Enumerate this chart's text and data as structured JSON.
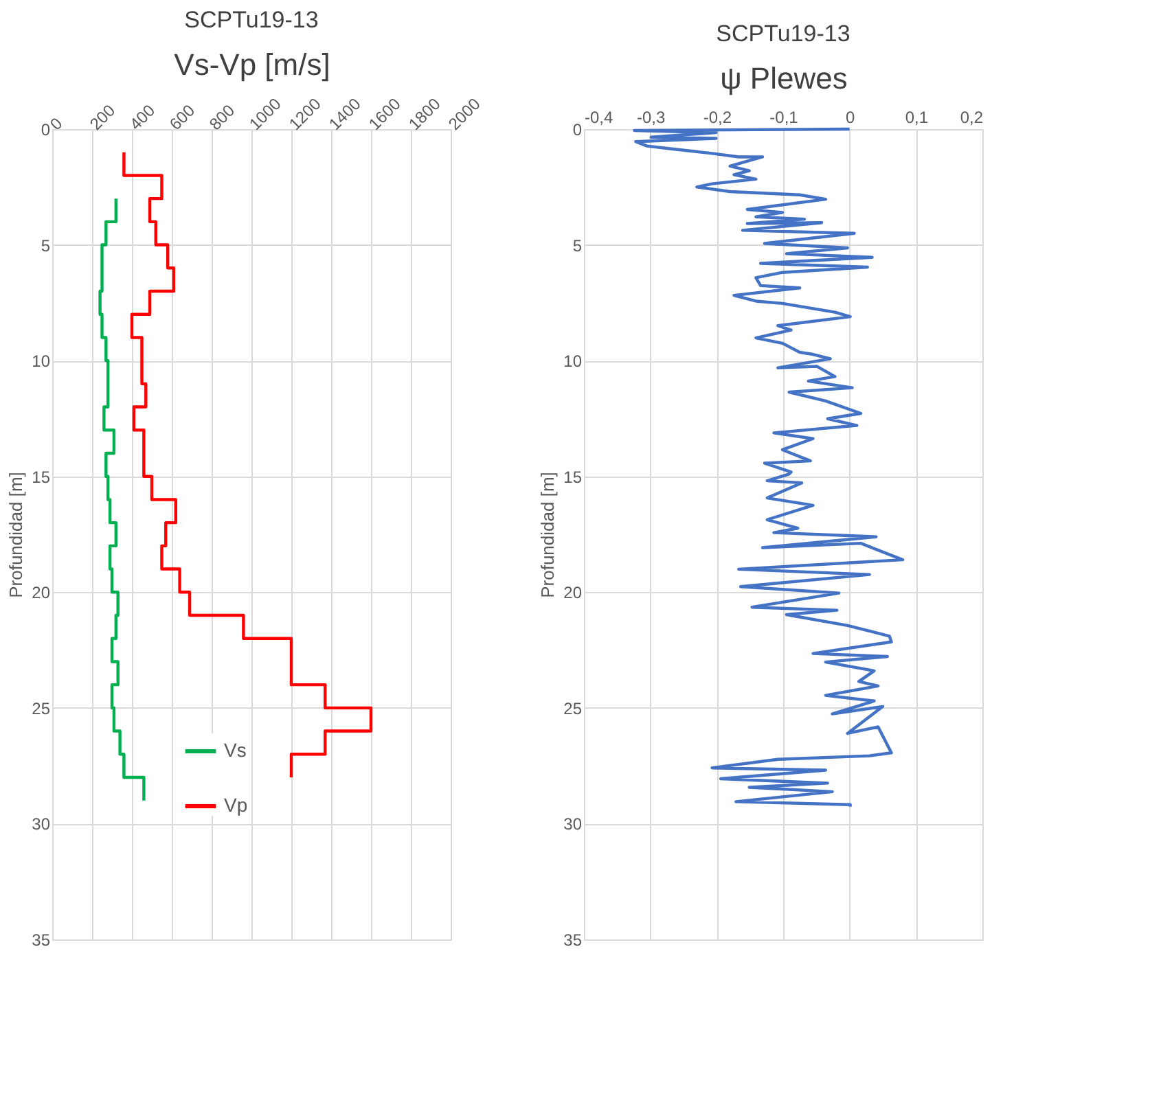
{
  "chart_data": [
    {
      "type": "line",
      "title": "SCPTu19-13",
      "xlabel": "Vs-Vp [m/s]",
      "ylabel": "Profundidad [m]",
      "xlim": [
        0,
        2000
      ],
      "xticks": [
        0,
        200,
        400,
        600,
        800,
        1000,
        1200,
        1400,
        1600,
        1800,
        2000
      ],
      "ylim": [
        35,
        0
      ],
      "yticks": [
        0,
        5,
        10,
        15,
        20,
        25,
        30,
        35
      ],
      "grid": true,
      "legend": "bottom left",
      "series": [
        {
          "name": "Vs",
          "color": "#00b050",
          "x": [
            320,
            320,
            270,
            270,
            250,
            250,
            250,
            250,
            240,
            240,
            250,
            250,
            270,
            270,
            280,
            280,
            260,
            260,
            310,
            310,
            270,
            270,
            280,
            280,
            290,
            290,
            320,
            320,
            290,
            290,
            300,
            300,
            330,
            330,
            320,
            320,
            300,
            300,
            330,
            330,
            300,
            300,
            310,
            310,
            340,
            340,
            360,
            360,
            460,
            460
          ],
          "values": [
            3,
            4,
            4,
            5,
            5,
            6,
            6,
            7,
            7,
            8,
            8,
            9,
            9,
            10,
            10,
            12,
            12,
            13,
            13,
            14,
            14,
            15,
            15,
            16,
            16,
            17,
            17,
            18,
            18,
            19,
            19,
            20,
            20,
            21,
            21,
            22,
            22,
            23,
            23,
            24,
            24,
            25,
            25,
            26,
            26,
            27,
            27,
            28,
            28,
            29
          ]
        },
        {
          "name": "Vp",
          "color": "#ff0000",
          "x": [
            360,
            360,
            550,
            550,
            490,
            490,
            520,
            520,
            580,
            580,
            610,
            610,
            490,
            490,
            400,
            400,
            450,
            450,
            470,
            470,
            410,
            410,
            460,
            460,
            500,
            500,
            620,
            620,
            570,
            570,
            550,
            550,
            640,
            640,
            690,
            690,
            960,
            960,
            1200,
            1200,
            1370,
            1370,
            1600,
            1600,
            1370,
            1370,
            1200,
            1200
          ],
          "values": [
            1,
            2,
            2,
            3,
            3,
            4,
            4,
            5,
            5,
            6,
            6,
            7,
            7,
            8,
            8,
            9,
            9,
            11,
            11,
            12,
            12,
            13,
            13,
            15,
            15,
            16,
            16,
            17,
            17,
            18,
            18,
            19,
            19,
            20,
            20,
            21,
            21,
            22,
            22,
            24,
            24,
            25,
            25,
            26,
            26,
            27,
            27,
            28
          ]
        }
      ]
    },
    {
      "type": "line",
      "title": "SCPTu19-13",
      "xlabel": "ψ Plewes",
      "ylabel": "Profundidad [m]",
      "xlim": [
        -0.4,
        0.2
      ],
      "xticks": [
        {
          "value": -0.4,
          "label": "-0,4"
        },
        {
          "value": -0.3,
          "label": "-0,3"
        },
        {
          "value": -0.2,
          "label": "-0,2"
        },
        {
          "value": -0.1,
          "label": "-0,1"
        },
        0,
        {
          "value": 0.1,
          "label": "0,1"
        },
        {
          "value": 0.2,
          "label": "0,2"
        }
      ],
      "ylim": [
        35,
        0
      ],
      "yticks": [
        0,
        5,
        10,
        15,
        20,
        25,
        30,
        35
      ],
      "grid": true,
      "series": [
        {
          "color": "#4472c4",
          "x": [
            0,
            -0.324,
            -0.201,
            -0.299,
            -0.201,
            -0.322,
            -0.305,
            -0.266,
            -0.207,
            -0.167,
            -0.131,
            -0.18,
            -0.151,
            -0.174,
            -0.141,
            -0.207,
            -0.23,
            -0.18,
            -0.075,
            -0.036,
            -0.154,
            -0.101,
            -0.141,
            -0.068,
            -0.154,
            -0.042,
            -0.161,
            0.007,
            -0.128,
            -0.003,
            -0.095,
            0.034,
            -0.134,
            0.027,
            -0.101,
            -0.141,
            -0.134,
            -0.075,
            -0.174,
            -0.141,
            -0.101,
            -0.022,
            0.001,
            -0.108,
            -0.088,
            -0.141,
            -0.101,
            -0.075,
            -0.055,
            -0.029,
            -0.108,
            -0.049,
            -0.022,
            -0.062,
            0.004,
            -0.091,
            -0.036,
            0.017,
            -0.033,
            0.011,
            -0.114,
            -0.055,
            -0.101,
            -0.059,
            -0.128,
            -0.088,
            -0.091,
            -0.124,
            -0.072,
            -0.124,
            -0.055,
            -0.124,
            -0.078,
            -0.114,
            0.04,
            -0.131,
            0.017,
            0.08,
            -0.167,
            0.03,
            -0.164,
            -0.016,
            -0.147,
            -0.019,
            -0.095,
            -0.003,
            0.06,
            0.063,
            -0.055,
            0.057,
            -0.036,
            0.037,
            0.014,
            0.043,
            -0.036,
            0.037,
            -0.026,
            0.05,
            -0.003,
            0.043,
            0.063,
            0.03,
            -0.108,
            -0.207,
            -0.036,
            -0.194,
            -0.033,
            -0.151,
            -0.026,
            -0.171,
            0.001,
            0.001
          ],
          "values": [
            0,
            0.06,
            0.15,
            0.35,
            0.4,
            0.54,
            0.73,
            0.86,
            1.05,
            1.2,
            1.2,
            1.6,
            1.8,
            1.97,
            2.16,
            2.36,
            2.5,
            2.7,
            2.84,
            3.03,
            3.47,
            3.6,
            3.79,
            3.89,
            4.08,
            4.04,
            4.37,
            4.5,
            4.94,
            5.13,
            5.38,
            5.54,
            5.8,
            5.96,
            6.19,
            6.42,
            6.76,
            6.86,
            7.18,
            7.43,
            7.53,
            7.91,
            8.1,
            8.49,
            8.68,
            9.02,
            9.25,
            9.64,
            9.73,
            9.92,
            10.31,
            10.25,
            10.69,
            10.88,
            11.17,
            11.36,
            11.74,
            12.28,
            12.51,
            12.8,
            13.12,
            13.37,
            13.85,
            14.33,
            14.43,
            14.81,
            14.9,
            15.19,
            15.28,
            15.93,
            16.25,
            16.87,
            17.24,
            17.43,
            17.61,
            18.08,
            17.89,
            18.6,
            19.01,
            19.24,
            19.76,
            20.04,
            20.65,
            20.78,
            20.97,
            21.44,
            21.9,
            22.15,
            22.65,
            22.78,
            23.02,
            23.4,
            23.86,
            24.05,
            24.46,
            24.7,
            25.26,
            24.94,
            26.1,
            25.82,
            26.94,
            27.07,
            27.22,
            27.59,
            27.69,
            28.06,
            28.25,
            28.43,
            28.62,
            29.05,
            29.18,
            29.27
          ]
        }
      ]
    }
  ]
}
